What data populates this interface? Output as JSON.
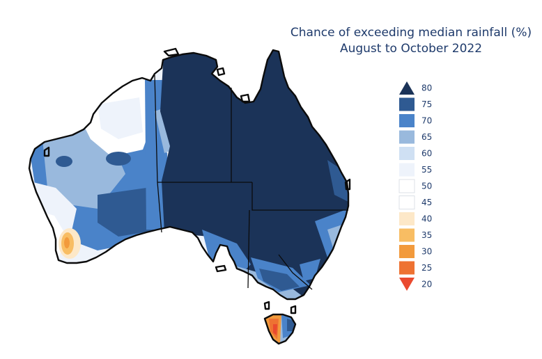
{
  "title": {
    "line1": "Chance of exceeding median rainfall (%)",
    "line2": "August to October 2022"
  },
  "legend": {
    "items": [
      {
        "label": "80",
        "color": "#1b3358",
        "shape": "arrow-up"
      },
      {
        "label": "75",
        "color": "#2f5a92",
        "shape": "box"
      },
      {
        "label": "70",
        "color": "#4a83c9",
        "shape": "box"
      },
      {
        "label": "65",
        "color": "#99b9dd",
        "shape": "box"
      },
      {
        "label": "60",
        "color": "#cfe0f3",
        "shape": "box"
      },
      {
        "label": "55",
        "color": "#eef3fb",
        "shape": "box"
      },
      {
        "label": "50",
        "color": "#ffffff",
        "shape": "box"
      },
      {
        "label": "45",
        "color": "#ffffff",
        "shape": "box"
      },
      {
        "label": "40",
        "color": "#fde8c8",
        "shape": "box"
      },
      {
        "label": "35",
        "color": "#f8bd63",
        "shape": "box"
      },
      {
        "label": "30",
        "color": "#f29a3c",
        "shape": "box"
      },
      {
        "label": "25",
        "color": "#ee7232",
        "shape": "box"
      },
      {
        "label": "20",
        "color": "#ea4a2f",
        "shape": "arrow-down"
      }
    ]
  },
  "colors": {
    "ocean": "#ffffff",
    "coastline": "#0b0b0b",
    "dominant_region": "#1b3358"
  }
}
